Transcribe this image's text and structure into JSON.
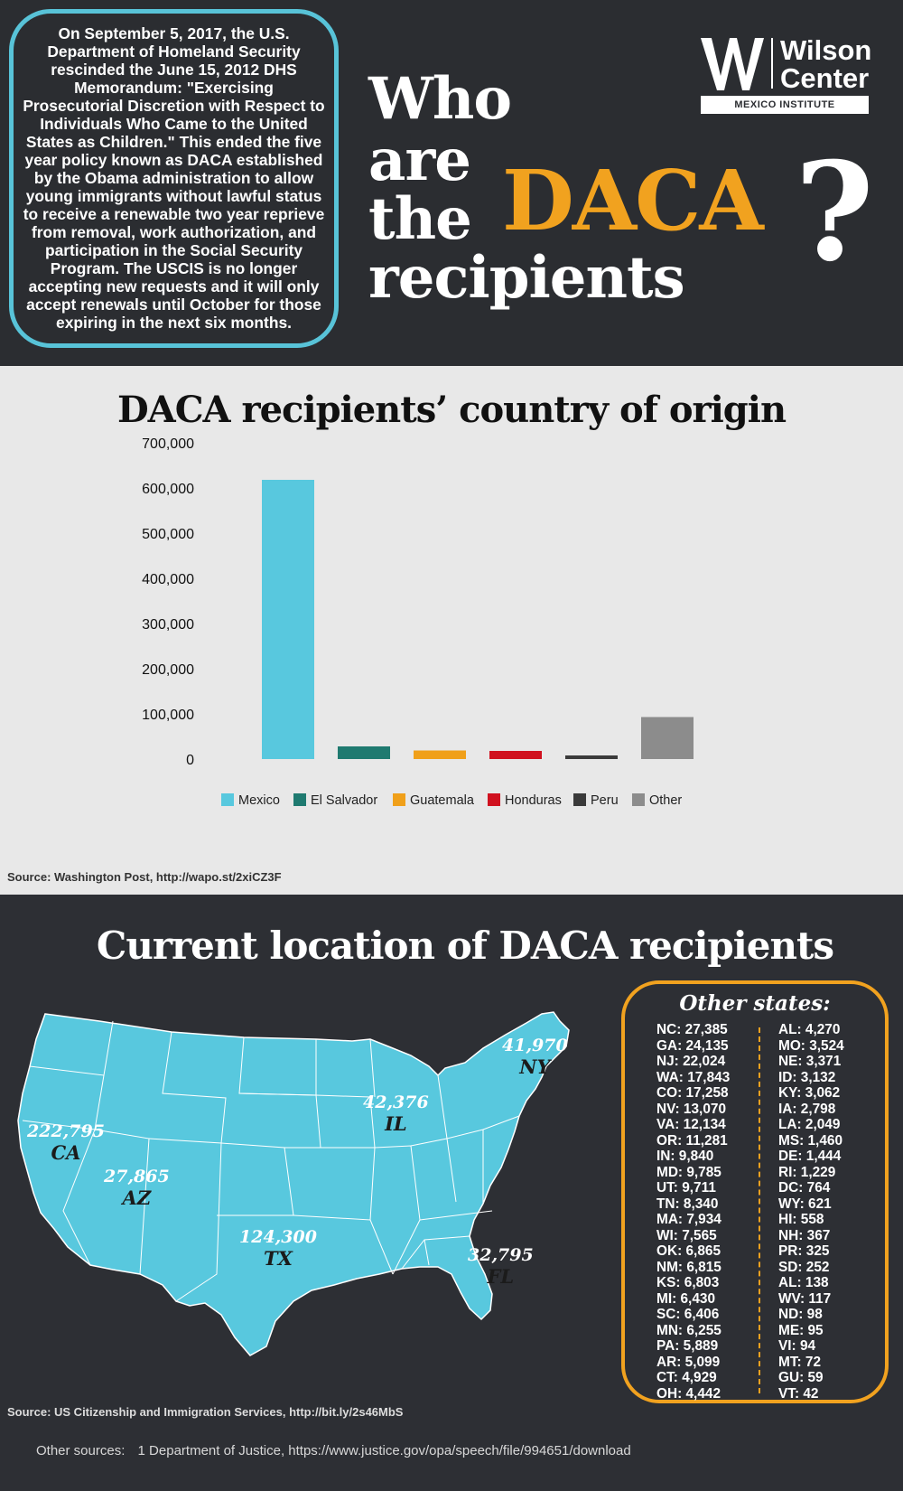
{
  "intro": {
    "text": "On September 5, 2017, the U.S. Department of Homeland Security rescinded the June 15, 2012 DHS Memorandum: \"Exercising Prosecutorial Discretion with Respect to Individuals Who Came to the United States as Children.\" This ended the five year policy known as DACA established by the Obama administration to allow young immigrants without lawful status to receive a renewable two year reprieve from removal, work authorization, and participation in the Social Security Program. The USCIS is no longer accepting new requests and it will only accept renewals until October for those expiring in the next six months."
  },
  "logo": {
    "line1": "Wilson",
    "line2": "Center",
    "institute": "MEXICO INSTITUTE"
  },
  "headline": {
    "word1": "Who",
    "word2": "are",
    "word3": "the",
    "highlight": "DACA",
    "word4": "recipients",
    "mark": "?"
  },
  "colors": {
    "accent": "#f1a21f",
    "cyan": "#58c3d8",
    "dark": "#2d2f34"
  },
  "chart_data": {
    "type": "bar",
    "title": "DACA recipients’ country of origin",
    "categories": [
      "Mexico",
      "El Salvador",
      "Guatemala",
      "Honduras",
      "Peru",
      "Other"
    ],
    "values": [
      618000,
      28000,
      19000,
      18000,
      8000,
      93000
    ],
    "colors": [
      "#58c8de",
      "#1f7a70",
      "#f0a01a",
      "#d0111f",
      "#3a3a3a",
      "#8c8c8c"
    ],
    "yticks": [
      "0",
      "100,000",
      "200,000",
      "300,000",
      "400,000",
      "500,000",
      "600,000",
      "700,000"
    ],
    "ylim": [
      0,
      700000
    ],
    "legend_position": "bottom",
    "grid": false,
    "source": "Source: Washington Post, http://wapo.st/2xiCZ3F"
  },
  "map": {
    "title": "Current location of DACA recipients",
    "labels": {
      "ca": {
        "value": "222,795",
        "state": "CA"
      },
      "az": {
        "value": "27,865",
        "state": "AZ"
      },
      "tx": {
        "value": "124,300",
        "state": "TX"
      },
      "il": {
        "value": "42,376",
        "state": "IL"
      },
      "ny": {
        "value": "41,970",
        "state": "NY"
      },
      "fl": {
        "value": "32,795",
        "state": "FL"
      }
    },
    "source": "Source: US Citizenship and Immigration Services, http://bit.ly/2s46MbS"
  },
  "other_states": {
    "title": "Other states:",
    "left": [
      "NC: 27,385",
      "GA: 24,135",
      "NJ: 22,024",
      "WA: 17,843",
      "CO: 17,258",
      "NV: 13,070",
      "VA: 12,134",
      "OR: 11,281",
      "IN: 9,840",
      "MD: 9,785",
      "UT: 9,711",
      "TN: 8,340",
      "MA: 7,934",
      "WI: 7,565",
      "OK: 6,865",
      "NM: 6,815",
      "KS: 6,803",
      "MI: 6,430",
      "SC: 6,406",
      "MN: 6,255",
      "PA: 5,889",
      "AR: 5,099",
      "CT: 4,929",
      "OH: 4,442"
    ],
    "right": [
      "AL: 4,270",
      "MO: 3,524",
      "NE: 3,371",
      "ID: 3,132",
      "KY: 3,062",
      "IA: 2,798",
      "LA: 2,049",
      "MS: 1,460",
      "DE: 1,444",
      "RI: 1,229",
      "DC: 764",
      "WY: 621",
      "HI: 558",
      "NH: 367",
      "PR: 325",
      "SD: 252",
      "AL: 138",
      "WV: 117",
      "ND: 98",
      "ME: 95",
      "VI: 94",
      "MT: 72",
      "GU: 59",
      "VT: 42"
    ]
  },
  "footer": {
    "lead": "Other sources:",
    "item": "1  Department of Justice, https://www.justice.gov/opa/speech/file/994651/download"
  }
}
